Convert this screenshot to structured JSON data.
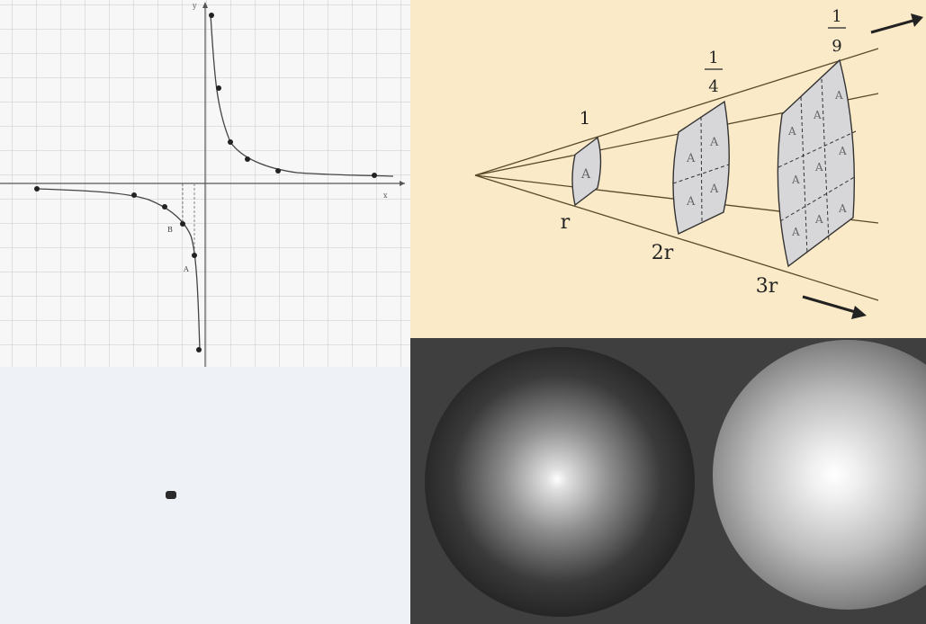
{
  "graph": {
    "axis_y_label": "y",
    "axis_x_label": "x",
    "point_labels": [
      "B",
      "A"
    ]
  },
  "inverse_square": {
    "intensity_labels": [
      "1",
      "1",
      "4",
      "1",
      "9"
    ],
    "distance_labels": [
      "r",
      "2r",
      "3r"
    ],
    "area_label": "A",
    "colors": {
      "background": "#fbeac7",
      "patch": "#d7d7d9",
      "line": "#5a4a2a"
    }
  },
  "spheres": {
    "colors": {
      "background": "#3f3f3f"
    }
  }
}
